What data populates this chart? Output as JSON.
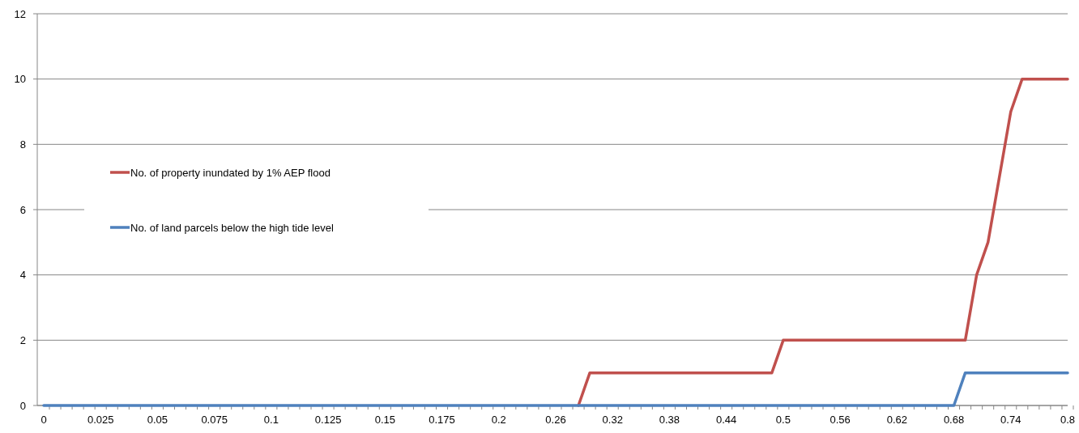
{
  "chart_data": {
    "type": "line",
    "categories": [
      "0",
      null,
      null,
      null,
      null,
      "0.025",
      null,
      null,
      null,
      null,
      "0.05",
      null,
      null,
      null,
      null,
      "0.075",
      null,
      null,
      null,
      null,
      "0.1",
      null,
      null,
      null,
      null,
      "0.125",
      null,
      null,
      null,
      null,
      "0.15",
      null,
      null,
      null,
      null,
      "0.175",
      null,
      null,
      null,
      null,
      "0.2",
      null,
      null,
      null,
      null,
      "0.26",
      null,
      null,
      null,
      null,
      "0.32",
      null,
      null,
      null,
      null,
      "0.38",
      null,
      null,
      null,
      null,
      "0.44",
      null,
      null,
      null,
      null,
      "0.5",
      null,
      null,
      null,
      null,
      "0.56",
      null,
      null,
      null,
      null,
      "0.62",
      null,
      null,
      null,
      null,
      "0.68",
      null,
      null,
      null,
      null,
      "0.74",
      null,
      null,
      null,
      null,
      "0.8"
    ],
    "series": [
      {
        "name": "No. of property inundated by 1% AEP flood",
        "color": "#c0504d",
        "values": [
          null,
          null,
          null,
          null,
          null,
          null,
          null,
          null,
          null,
          null,
          null,
          null,
          null,
          null,
          null,
          null,
          null,
          null,
          null,
          null,
          null,
          null,
          null,
          null,
          null,
          null,
          null,
          null,
          null,
          null,
          null,
          null,
          null,
          null,
          null,
          null,
          null,
          null,
          null,
          null,
          null,
          null,
          null,
          null,
          null,
          null,
          null,
          0,
          1,
          1,
          1,
          1,
          1,
          1,
          1,
          1,
          1,
          1,
          1,
          1,
          1,
          1,
          1,
          1,
          1,
          2,
          2,
          2,
          2,
          2,
          2,
          2,
          2,
          2,
          2,
          2,
          2,
          2,
          2,
          2,
          2,
          2,
          4,
          5,
          7,
          9,
          10,
          10,
          10,
          10,
          10
        ]
      },
      {
        "name": "No. of land parcels below the high tide level",
        "color": "#4f81bd",
        "values": [
          0,
          0,
          0,
          0,
          0,
          0,
          0,
          0,
          0,
          0,
          0,
          0,
          0,
          0,
          0,
          0,
          0,
          0,
          0,
          0,
          0,
          0,
          0,
          0,
          0,
          0,
          0,
          0,
          0,
          0,
          0,
          0,
          0,
          0,
          0,
          0,
          0,
          0,
          0,
          0,
          0,
          0,
          0,
          0,
          0,
          0,
          0,
          0,
          0,
          0,
          0,
          0,
          0,
          0,
          0,
          0,
          0,
          0,
          0,
          0,
          0,
          0,
          0,
          0,
          0,
          0,
          0,
          0,
          0,
          0,
          0,
          0,
          0,
          0,
          0,
          0,
          0,
          0,
          0,
          0,
          0,
          1,
          1,
          1,
          1,
          1,
          1,
          1,
          1,
          1,
          1
        ]
      }
    ],
    "ylim": [
      0,
      12
    ],
    "yticks": [
      0,
      2,
      4,
      6,
      8,
      10,
      12
    ],
    "grid": "y",
    "legend": "left",
    "marker": "none",
    "line_style": "solid"
  }
}
